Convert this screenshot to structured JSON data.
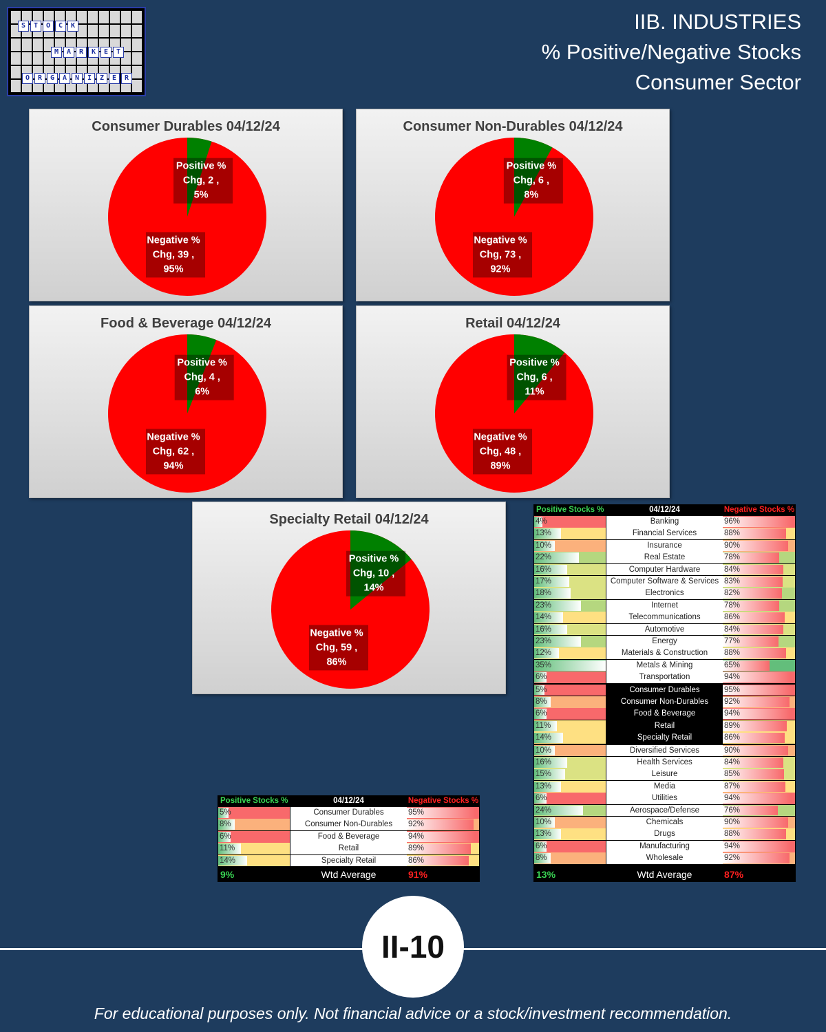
{
  "logo": {
    "words": [
      "STOCK",
      "MARKET",
      "ORGANIZER"
    ]
  },
  "header": {
    "line1": "IIB. INDUSTRIES",
    "line2": "% Positive/Negative Stocks",
    "line3": "Consumer Sector"
  },
  "colors": {
    "positive": "#008000",
    "negative": "#ff0000"
  },
  "chart_data": [
    {
      "type": "pie",
      "title": "Consumer Durables 04/12/24",
      "slices": [
        {
          "label": "Positive % Chg",
          "count": 2,
          "pct": 5,
          "color": "#008000"
        },
        {
          "label": "Negative % Chg",
          "count": 39,
          "pct": 95,
          "color": "#ff0000"
        }
      ]
    },
    {
      "type": "pie",
      "title": "Consumer Non-Durables 04/12/24",
      "slices": [
        {
          "label": "Positive % Chg",
          "count": 6,
          "pct": 8,
          "color": "#008000"
        },
        {
          "label": "Negative % Chg",
          "count": 73,
          "pct": 92,
          "color": "#ff0000"
        }
      ]
    },
    {
      "type": "pie",
      "title": "Food & Beverage 04/12/24",
      "slices": [
        {
          "label": "Positive % Chg",
          "count": 4,
          "pct": 6,
          "color": "#008000"
        },
        {
          "label": "Negative % Chg",
          "count": 62,
          "pct": 94,
          "color": "#ff0000"
        }
      ]
    },
    {
      "type": "pie",
      "title": "Retail 04/12/24",
      "slices": [
        {
          "label": "Positive % Chg",
          "count": 6,
          "pct": 11,
          "color": "#008000"
        },
        {
          "label": "Negative % Chg",
          "count": 48,
          "pct": 89,
          "color": "#ff0000"
        }
      ]
    },
    {
      "type": "pie",
      "title": "Specialty Retail 04/12/24",
      "slices": [
        {
          "label": "Positive % Chg",
          "count": 10,
          "pct": 14,
          "color": "#008000"
        },
        {
          "label": "Negative % Chg",
          "count": 59,
          "pct": 86,
          "color": "#ff0000"
        }
      ]
    },
    {
      "type": "table",
      "name": "sector",
      "headers": [
        "Positive Stocks %",
        "04/12/24",
        "Negative Stocks %"
      ],
      "rows": [
        {
          "industry": "Consumer Durables",
          "pos": 5,
          "neg": 95
        },
        {
          "industry": "Consumer Non-Durables",
          "pos": 8,
          "neg": 92
        },
        {
          "industry": "Food & Beverage",
          "pos": 6,
          "neg": 94
        },
        {
          "industry": "Retail",
          "pos": 11,
          "neg": 89
        },
        {
          "industry": "Specialty Retail",
          "pos": 14,
          "neg": 86
        }
      ],
      "footer": {
        "pos": "9%",
        "label": "Wtd Average",
        "neg": "91%"
      }
    },
    {
      "type": "table",
      "name": "all",
      "headers": [
        "Positive Stocks %",
        "04/12/24",
        "Negative Stocks %"
      ],
      "rows": [
        {
          "industry": "Banking",
          "pos": 4,
          "neg": 96
        },
        {
          "industry": "Financial Services",
          "pos": 13,
          "neg": 88
        },
        {
          "industry": "Insurance",
          "pos": 10,
          "neg": 90
        },
        {
          "industry": "Real Estate",
          "pos": 22,
          "neg": 78
        },
        {
          "industry": "Computer Hardware",
          "pos": 16,
          "neg": 84
        },
        {
          "industry": "Computer Software & Services",
          "pos": 17,
          "neg": 83
        },
        {
          "industry": "Electronics",
          "pos": 18,
          "neg": 82
        },
        {
          "industry": "Internet",
          "pos": 23,
          "neg": 78
        },
        {
          "industry": "Telecommunications",
          "pos": 14,
          "neg": 86
        },
        {
          "industry": "Automotive",
          "pos": 16,
          "neg": 84
        },
        {
          "industry": "Energy",
          "pos": 23,
          "neg": 77
        },
        {
          "industry": "Materials & Construction",
          "pos": 12,
          "neg": 88
        },
        {
          "industry": "Metals & Mining",
          "pos": 35,
          "neg": 65
        },
        {
          "industry": "Transportation",
          "pos": 6,
          "neg": 94
        },
        {
          "industry": "Consumer Durables",
          "pos": 5,
          "neg": 95,
          "highlight": true
        },
        {
          "industry": "Consumer Non-Durables",
          "pos": 8,
          "neg": 92,
          "highlight": true
        },
        {
          "industry": "Food & Beverage",
          "pos": 6,
          "neg": 94,
          "highlight": true
        },
        {
          "industry": "Retail",
          "pos": 11,
          "neg": 89,
          "highlight": true
        },
        {
          "industry": "Specialty Retail",
          "pos": 14,
          "neg": 86,
          "highlight": true
        },
        {
          "industry": "Diversified Services",
          "pos": 10,
          "neg": 90
        },
        {
          "industry": "Health Services",
          "pos": 16,
          "neg": 84
        },
        {
          "industry": "Leisure",
          "pos": 15,
          "neg": 85
        },
        {
          "industry": "Media",
          "pos": 13,
          "neg": 87
        },
        {
          "industry": "Utilities",
          "pos": 6,
          "neg": 94
        },
        {
          "industry": "Aerospace/Defense",
          "pos": 24,
          "neg": 76
        },
        {
          "industry": "Chemicals",
          "pos": 10,
          "neg": 90
        },
        {
          "industry": "Drugs",
          "pos": 13,
          "neg": 88
        },
        {
          "industry": "Manufacturing",
          "pos": 6,
          "neg": 94
        },
        {
          "industry": "Wholesale",
          "pos": 8,
          "neg": 92
        }
      ],
      "footer": {
        "pos": "13%",
        "label": "Wtd Average",
        "neg": "87%"
      }
    }
  ],
  "page_number": "II-10",
  "disclaimer": "For educational purposes only. Not financial advice or a stock/investment recommendation."
}
